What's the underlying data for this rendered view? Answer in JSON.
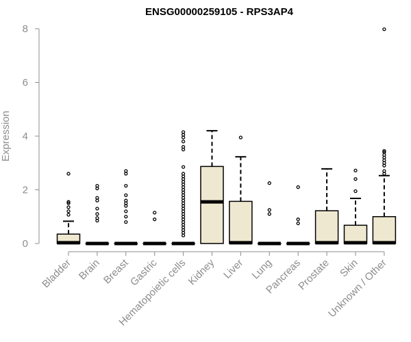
{
  "chart_data": {
    "type": "boxplot",
    "title": "ENSG00000259105 - RPS3AP4",
    "xlabel": "",
    "ylabel": "Expression",
    "ylim": [
      0,
      8
    ],
    "yticks": [
      0,
      2,
      4,
      6,
      8
    ],
    "grid": false,
    "legend": "none",
    "box_fill": "#efe8d0",
    "box_stroke": "#000000",
    "axis_color": "#8c8c8c",
    "categories": [
      "Bladder",
      "Brain",
      "Breast",
      "Gastric",
      "Hematopoietic cells",
      "Kidney",
      "Liver",
      "Lung",
      "Pancreas",
      "Prostate",
      "Skin",
      "Unknown / Other"
    ],
    "boxes": [
      {
        "q1": 0,
        "median": 0.03,
        "q3": 0.35,
        "whisker_low": 0,
        "whisker_high": 0.83,
        "outliers": [
          1.07,
          1.2,
          1.35,
          1.5,
          1.55,
          2.6
        ]
      },
      {
        "q1": 0,
        "median": 0,
        "q3": 0,
        "whisker_low": 0,
        "whisker_high": 0,
        "outliers": [
          0.85,
          0.95,
          1.1,
          1.3,
          1.6,
          1.7,
          2.05,
          2.15
        ]
      },
      {
        "q1": 0,
        "median": 0,
        "q3": 0,
        "whisker_low": 0,
        "whisker_high": 0,
        "outliers": [
          0.8,
          1.0,
          1.2,
          1.4,
          1.5,
          1.6,
          1.8,
          2.15,
          2.6,
          2.7
        ]
      },
      {
        "q1": 0,
        "median": 0,
        "q3": 0,
        "whisker_low": 0,
        "whisker_high": 0,
        "outliers": [
          0.9,
          1.15
        ]
      },
      {
        "q1": 0,
        "median": 0,
        "q3": 0,
        "whisker_low": 0,
        "whisker_high": 0,
        "outliers": [
          0.3,
          0.4,
          0.5,
          0.6,
          0.7,
          0.8,
          0.9,
          1.0,
          1.1,
          1.2,
          1.3,
          1.4,
          1.5,
          1.6,
          1.7,
          1.8,
          1.9,
          2.0,
          2.1,
          2.2,
          2.3,
          2.4,
          2.5,
          2.6,
          2.85,
          3.5,
          3.6,
          3.8,
          3.95,
          4.05,
          4.15
        ]
      },
      {
        "q1": 0,
        "median": 1.55,
        "q3": 2.87,
        "whisker_low": 0,
        "whisker_high": 4.2,
        "outliers": []
      },
      {
        "q1": 0,
        "median": 0.03,
        "q3": 1.57,
        "whisker_low": 0,
        "whisker_high": 3.23,
        "outliers": [
          3.95
        ]
      },
      {
        "q1": 0,
        "median": 0,
        "q3": 0,
        "whisker_low": 0,
        "whisker_high": 0,
        "outliers": [
          1.1,
          1.25,
          2.25
        ]
      },
      {
        "q1": 0,
        "median": 0,
        "q3": 0,
        "whisker_low": 0,
        "whisker_high": 0,
        "outliers": [
          0.75,
          0.9,
          2.1
        ]
      },
      {
        "q1": 0,
        "median": 0.03,
        "q3": 1.22,
        "whisker_low": 0,
        "whisker_high": 2.78,
        "outliers": []
      },
      {
        "q1": 0,
        "median": 0.03,
        "q3": 0.68,
        "whisker_low": 0,
        "whisker_high": 1.68,
        "outliers": [
          1.95,
          2.4,
          2.72
        ]
      },
      {
        "q1": 0,
        "median": 0.03,
        "q3": 1.0,
        "whisker_low": 0,
        "whisker_high": 2.53,
        "outliers": [
          2.6,
          2.7,
          2.9,
          3.0,
          3.1,
          3.2,
          3.3,
          3.4,
          3.45,
          7.98
        ]
      }
    ]
  }
}
